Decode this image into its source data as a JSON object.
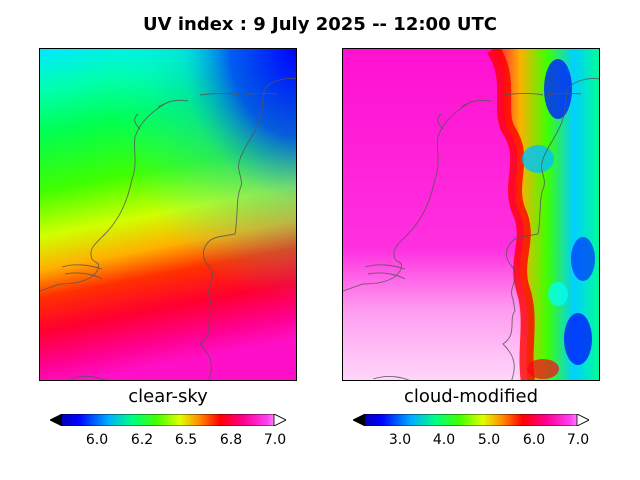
{
  "title": "UV index :  9 July 2025  --  12:00 UTC",
  "panels": [
    {
      "label": "clear-sky",
      "colorbar": {
        "ticks": [
          "6.0",
          "6.2",
          "6.5",
          "6.8",
          "7.0"
        ]
      }
    },
    {
      "label": "cloud-modified",
      "colorbar": {
        "ticks": [
          "3.0",
          "4.0",
          "5.0",
          "6.0",
          "7.0"
        ]
      }
    }
  ],
  "colors": {
    "coastline": "#555555"
  }
}
